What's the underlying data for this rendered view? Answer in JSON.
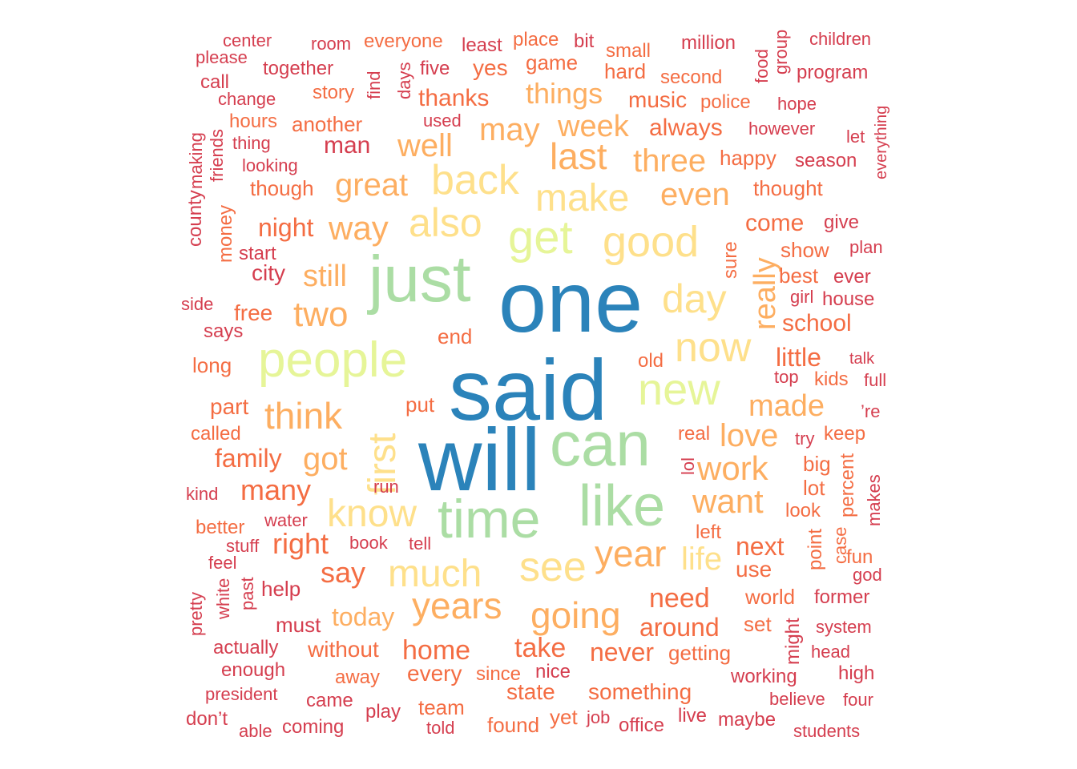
{
  "palette": [
    "#2b83ba",
    "#abdda4",
    "#e6f598",
    "#fee08b",
    "#fdae61",
    "#f46d43",
    "#d53e4f"
  ],
  "words": [
    {
      "text": "said",
      "tier": 0
    },
    {
      "text": "one",
      "tier": 0
    },
    {
      "text": "will",
      "tier": 0
    },
    {
      "text": "just",
      "tier": 1
    },
    {
      "text": "can",
      "tier": 1
    },
    {
      "text": "time",
      "tier": 1
    },
    {
      "text": "like",
      "tier": 1
    },
    {
      "text": "people",
      "tier": 2
    },
    {
      "text": "get",
      "tier": 2
    },
    {
      "text": "new",
      "tier": 2
    },
    {
      "text": "good",
      "tier": 3
    },
    {
      "text": "also",
      "tier": 3
    },
    {
      "text": "back",
      "tier": 3
    },
    {
      "text": "make",
      "tier": 3
    },
    {
      "text": "now",
      "tier": 3
    },
    {
      "text": "day",
      "tier": 3
    },
    {
      "text": "first",
      "tier": 3
    },
    {
      "text": "know",
      "tier": 3
    },
    {
      "text": "much",
      "tier": 3
    },
    {
      "text": "see",
      "tier": 3
    },
    {
      "text": "year",
      "tier": 4
    },
    {
      "text": "years",
      "tier": 4
    },
    {
      "text": "going",
      "tier": 4
    },
    {
      "text": "life",
      "tier": 3
    },
    {
      "text": "want",
      "tier": 4
    },
    {
      "text": "work",
      "tier": 4
    },
    {
      "text": "last",
      "tier": 4
    },
    {
      "text": "three",
      "tier": 4
    },
    {
      "text": "even",
      "tier": 4
    },
    {
      "text": "way",
      "tier": 4
    },
    {
      "text": "think",
      "tier": 4
    },
    {
      "text": "two",
      "tier": 4
    },
    {
      "text": "great",
      "tier": 4
    },
    {
      "text": "may",
      "tier": 4
    },
    {
      "text": "week",
      "tier": 4
    },
    {
      "text": "well",
      "tier": 4
    },
    {
      "text": "things",
      "tier": 4
    },
    {
      "text": "really",
      "tier": 4
    },
    {
      "text": "love",
      "tier": 4
    },
    {
      "text": "made",
      "tier": 4
    },
    {
      "text": "still",
      "tier": 4
    },
    {
      "text": "got",
      "tier": 4
    },
    {
      "text": "many",
      "tier": 5
    },
    {
      "text": "right",
      "tier": 5
    },
    {
      "text": "say",
      "tier": 5
    },
    {
      "text": "take",
      "tier": 5
    },
    {
      "text": "home",
      "tier": 5
    },
    {
      "text": "need",
      "tier": 5
    },
    {
      "text": "around",
      "tier": 5
    },
    {
      "text": "never",
      "tier": 5
    },
    {
      "text": "next",
      "tier": 5
    },
    {
      "text": "today",
      "tier": 4
    },
    {
      "text": "little",
      "tier": 5
    },
    {
      "text": "school",
      "tier": 5
    },
    {
      "text": "family",
      "tier": 5
    },
    {
      "text": "night",
      "tier": 5
    },
    {
      "text": "come",
      "tier": 5
    },
    {
      "text": "thanks",
      "tier": 5
    },
    {
      "text": "always",
      "tier": 5
    },
    {
      "text": "music",
      "tier": 5
    },
    {
      "text": "everyone",
      "tier": 5
    },
    {
      "text": "game",
      "tier": 5
    },
    {
      "text": "place",
      "tier": 5
    },
    {
      "text": "yes",
      "tier": 5
    },
    {
      "text": "man",
      "tier": 6
    },
    {
      "text": "city",
      "tier": 6
    },
    {
      "text": "free",
      "tier": 5
    },
    {
      "text": "end",
      "tier": 5
    },
    {
      "text": "put",
      "tier": 5
    },
    {
      "text": "part",
      "tier": 5
    },
    {
      "text": "use",
      "tier": 5
    },
    {
      "text": "world",
      "tier": 5
    },
    {
      "text": "set",
      "tier": 5
    },
    {
      "text": "state",
      "tier": 5
    },
    {
      "text": "something",
      "tier": 5
    },
    {
      "text": "every",
      "tier": 5
    },
    {
      "text": "since",
      "tier": 5
    },
    {
      "text": "getting",
      "tier": 5
    },
    {
      "text": "without",
      "tier": 5
    },
    {
      "text": "team",
      "tier": 5
    },
    {
      "text": "found",
      "tier": 5
    },
    {
      "text": "yet",
      "tier": 5
    },
    {
      "text": "must",
      "tier": 6
    },
    {
      "text": "help",
      "tier": 6
    },
    {
      "text": "another",
      "tier": 5
    },
    {
      "text": "story",
      "tier": 5
    },
    {
      "text": "though",
      "tier": 5
    },
    {
      "text": "thought",
      "tier": 5
    },
    {
      "text": "happy",
      "tier": 5
    },
    {
      "text": "show",
      "tier": 5
    },
    {
      "text": "best",
      "tier": 5
    },
    {
      "text": "police",
      "tier": 5
    },
    {
      "text": "second",
      "tier": 5
    },
    {
      "text": "small",
      "tier": 5
    },
    {
      "text": "hard",
      "tier": 5
    },
    {
      "text": "sure",
      "tier": 5
    },
    {
      "text": "keep",
      "tier": 5
    },
    {
      "text": "big",
      "tier": 5
    },
    {
      "text": "percent",
      "tier": 5
    },
    {
      "text": "lot",
      "tier": 5
    },
    {
      "text": "look",
      "tier": 5
    },
    {
      "text": "point",
      "tier": 5
    },
    {
      "text": "case",
      "tier": 5
    },
    {
      "text": "fun",
      "tier": 5
    },
    {
      "text": "kids",
      "tier": 5
    },
    {
      "text": "real",
      "tier": 5
    },
    {
      "text": "old",
      "tier": 5
    },
    {
      "text": "left",
      "tier": 5
    },
    {
      "text": "nice",
      "tier": 6
    },
    {
      "text": "money",
      "tier": 5
    },
    {
      "text": "long",
      "tier": 5
    },
    {
      "text": "called",
      "tier": 5
    },
    {
      "text": "better",
      "tier": 5
    },
    {
      "text": "hours",
      "tier": 5
    },
    {
      "text": "center",
      "tier": 6
    },
    {
      "text": "please",
      "tier": 6
    },
    {
      "text": "together",
      "tier": 6
    },
    {
      "text": "room",
      "tier": 6
    },
    {
      "text": "least",
      "tier": 6
    },
    {
      "text": "bit",
      "tier": 6
    },
    {
      "text": "million",
      "tier": 6
    },
    {
      "text": "group",
      "tier": 6
    },
    {
      "text": "children",
      "tier": 6
    },
    {
      "text": "five",
      "tier": 6
    },
    {
      "text": "food",
      "tier": 6
    },
    {
      "text": "program",
      "tier": 6
    },
    {
      "text": "call",
      "tier": 6
    },
    {
      "text": "find",
      "tier": 6
    },
    {
      "text": "days",
      "tier": 6
    },
    {
      "text": "change",
      "tier": 6
    },
    {
      "text": "used",
      "tier": 6
    },
    {
      "text": "hope",
      "tier": 6
    },
    {
      "text": "everything",
      "tier": 6
    },
    {
      "text": "however",
      "tier": 6
    },
    {
      "text": "thing",
      "tier": 6
    },
    {
      "text": "let",
      "tier": 6
    },
    {
      "text": "friends",
      "tier": 6
    },
    {
      "text": "looking",
      "tier": 6
    },
    {
      "text": "season",
      "tier": 6
    },
    {
      "text": "making",
      "tier": 6
    },
    {
      "text": "county",
      "tier": 6
    },
    {
      "text": "give",
      "tier": 6
    },
    {
      "text": "start",
      "tier": 6
    },
    {
      "text": "plan",
      "tier": 6
    },
    {
      "text": "ever",
      "tier": 6
    },
    {
      "text": "side",
      "tier": 6
    },
    {
      "text": "girl",
      "tier": 6
    },
    {
      "text": "house",
      "tier": 6
    },
    {
      "text": "says",
      "tier": 6
    },
    {
      "text": "talk",
      "tier": 6
    },
    {
      "text": "top",
      "tier": 6
    },
    {
      "text": "full",
      "tier": 6
    },
    {
      "text": "’re",
      "tier": 6
    },
    {
      "text": "try",
      "tier": 6
    },
    {
      "text": "lol",
      "tier": 6
    },
    {
      "text": "kind",
      "tier": 6
    },
    {
      "text": "run",
      "tier": 6
    },
    {
      "text": "water",
      "tier": 6
    },
    {
      "text": "makes",
      "tier": 6
    },
    {
      "text": "stuff",
      "tier": 6
    },
    {
      "text": "book",
      "tier": 6
    },
    {
      "text": "tell",
      "tier": 6
    },
    {
      "text": "feel",
      "tier": 6
    },
    {
      "text": "god",
      "tier": 6
    },
    {
      "text": "white",
      "tier": 6
    },
    {
      "text": "past",
      "tier": 6
    },
    {
      "text": "pretty",
      "tier": 6
    },
    {
      "text": "former",
      "tier": 6
    },
    {
      "text": "might",
      "tier": 6
    },
    {
      "text": "system",
      "tier": 6
    },
    {
      "text": "actually",
      "tier": 6
    },
    {
      "text": "head",
      "tier": 6
    },
    {
      "text": "enough",
      "tier": 6
    },
    {
      "text": "away",
      "tier": 5
    },
    {
      "text": "high",
      "tier": 6
    },
    {
      "text": "working",
      "tier": 6
    },
    {
      "text": "president",
      "tier": 6
    },
    {
      "text": "came",
      "tier": 6
    },
    {
      "text": "play",
      "tier": 6
    },
    {
      "text": "believe",
      "tier": 6
    },
    {
      "text": "four",
      "tier": 6
    },
    {
      "text": "don’t",
      "tier": 6
    },
    {
      "text": "able",
      "tier": 6
    },
    {
      "text": "coming",
      "tier": 6
    },
    {
      "text": "told",
      "tier": 6
    },
    {
      "text": "job",
      "tier": 6
    },
    {
      "text": "office",
      "tier": 6
    },
    {
      "text": "live",
      "tier": 6
    },
    {
      "text": "maybe",
      "tier": 6
    },
    {
      "text": "students",
      "tier": 6
    }
  ]
}
